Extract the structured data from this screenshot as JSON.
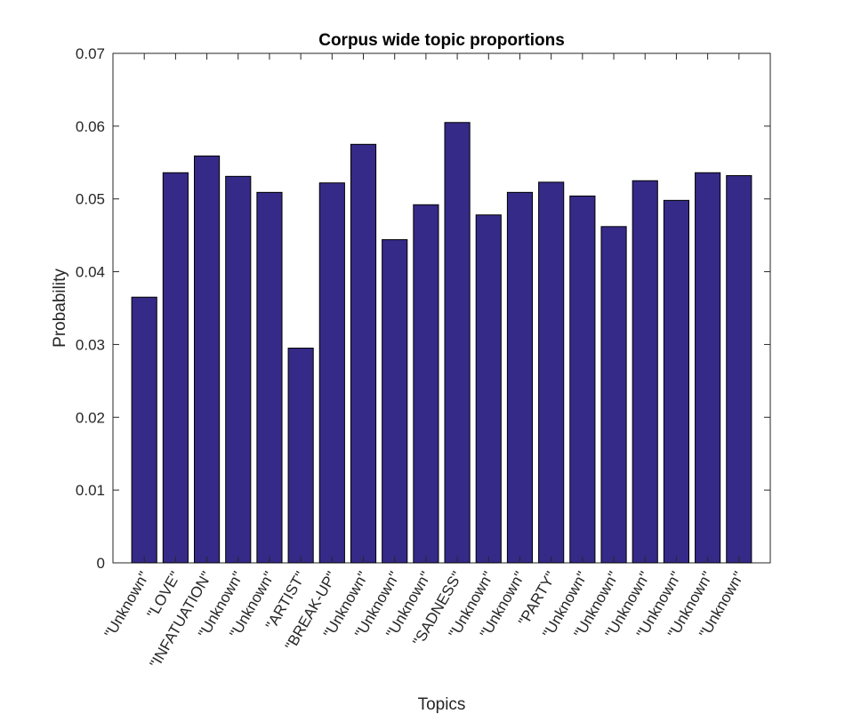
{
  "chart_data": {
    "type": "bar",
    "title": "Corpus wide topic proportions",
    "xlabel": "Topics",
    "ylabel": "Probability",
    "ylim": [
      0,
      0.07
    ],
    "yticks": [
      "0",
      "0.01",
      "0.02",
      "0.03",
      "0.04",
      "0.05",
      "0.06",
      "0.07"
    ],
    "categories": [
      "\"Unknown\"",
      "\"LOVE\"",
      "\"INFATUATION\"",
      "\"Unknown\"",
      "\"Unknown\"",
      "\"ARTIST\"",
      "\"BREAK-UP\"",
      "\"Unknown\"",
      "\"Unknown\"",
      "\"Unknown\"",
      "\"SADNESS\"",
      "\"Unknown\"",
      "\"Unknown\"",
      "\"PARTY\"",
      "\"Unknown\"",
      "\"Unknown\"",
      "\"Unknown\"",
      "\"Unknown\"",
      "\"Unknown\"",
      "\"Unknown\""
    ],
    "values": [
      0.0365,
      0.0536,
      0.0559,
      0.0531,
      0.0509,
      0.0295,
      0.0522,
      0.0575,
      0.0444,
      0.0492,
      0.0605,
      0.0478,
      0.0509,
      0.0523,
      0.0504,
      0.0462,
      0.0525,
      0.0498,
      0.0536,
      0.0532
    ],
    "bar_color": "#352a87",
    "grid": false,
    "legend": "none"
  }
}
